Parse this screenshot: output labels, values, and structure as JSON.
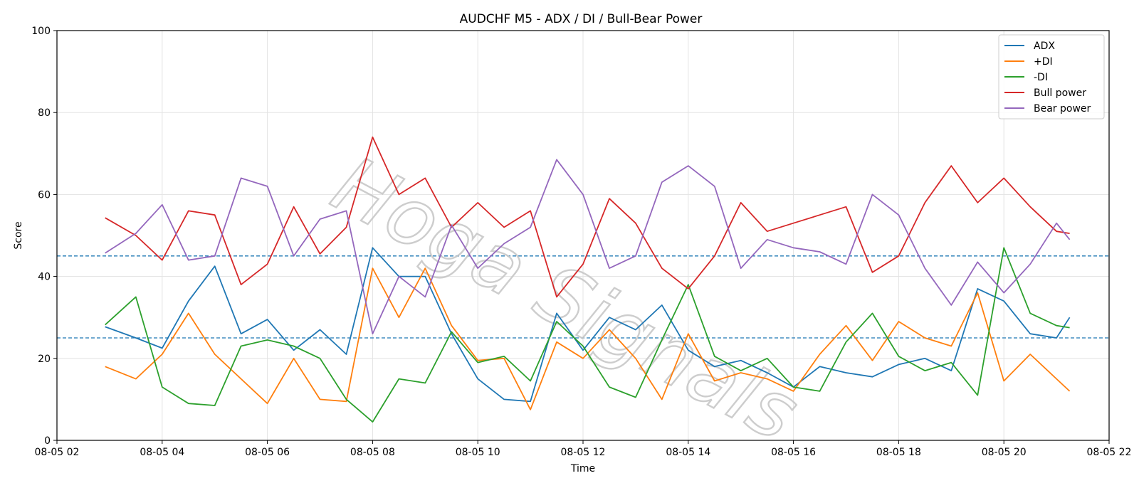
{
  "chart_data": {
    "type": "line",
    "title": "AUDCHF M5 - ADX / DI / Bull-Bear Power",
    "xlabel": "Time",
    "ylabel": "Score",
    "ylim": [
      0,
      100
    ],
    "xlim": [
      "2024-08-05 02:00",
      "2024-08-05 22:00"
    ],
    "x_tick_labels": [
      "08-05 02",
      "08-05 04",
      "08-05 06",
      "08-05 08",
      "08-05 10",
      "08-05 12",
      "08-05 14",
      "08-05 16",
      "08-05 18",
      "08-05 20",
      "08-05 22"
    ],
    "y_ticks": [
      0,
      20,
      40,
      60,
      80,
      100
    ],
    "grid": true,
    "legend_position": "top-right",
    "watermark": "Hoga Signals",
    "reference_lines": [
      {
        "y": 45,
        "style": "dashed",
        "color": "#1f77b4"
      },
      {
        "y": 25,
        "style": "dashed",
        "color": "#1f77b4"
      }
    ],
    "x": [
      "2024-08-05 02:55",
      "2024-08-05 03:30",
      "2024-08-05 04:00",
      "2024-08-05 04:30",
      "2024-08-05 05:00",
      "2024-08-05 05:30",
      "2024-08-05 06:00",
      "2024-08-05 06:30",
      "2024-08-05 07:00",
      "2024-08-05 07:30",
      "2024-08-05 08:00",
      "2024-08-05 08:30",
      "2024-08-05 09:00",
      "2024-08-05 09:30",
      "2024-08-05 10:00",
      "2024-08-05 10:30",
      "2024-08-05 11:00",
      "2024-08-05 11:30",
      "2024-08-05 12:00",
      "2024-08-05 12:30",
      "2024-08-05 13:00",
      "2024-08-05 13:30",
      "2024-08-05 14:00",
      "2024-08-05 14:30",
      "2024-08-05 15:00",
      "2024-08-05 15:30",
      "2024-08-05 16:00",
      "2024-08-05 16:30",
      "2024-08-05 17:00",
      "2024-08-05 17:30",
      "2024-08-05 18:00",
      "2024-08-05 18:30",
      "2024-08-05 19:00",
      "2024-08-05 19:30",
      "2024-08-05 20:00",
      "2024-08-05 20:30",
      "2024-08-05 21:00",
      "2024-08-05 21:15"
    ],
    "series": [
      {
        "name": "ADX",
        "color": "#1f77b4",
        "values": [
          27.7,
          25.0,
          22.5,
          34.0,
          42.5,
          26.0,
          29.5,
          22.0,
          27.0,
          21.0,
          47.0,
          40.0,
          40.0,
          26.0,
          15.0,
          10.0,
          9.5,
          31.0,
          22.0,
          30.0,
          27.0,
          33.0,
          22.0,
          18.0,
          19.5,
          16.5,
          13.0,
          18.0,
          16.5,
          15.5,
          18.5,
          20.0,
          17.0,
          37.0,
          34.0,
          26.0,
          25.0,
          30.0
        ]
      },
      {
        "name": "+DI",
        "color": "#ff7f0e",
        "values": [
          18.0,
          15.0,
          21.0,
          31.0,
          21.0,
          15.0,
          9.0,
          20.0,
          10.0,
          9.5,
          42.0,
          30.0,
          42.0,
          28.0,
          19.5,
          20.0,
          7.5,
          24.0,
          20.0,
          27.0,
          20.0,
          10.0,
          26.0,
          14.5,
          16.5,
          15.0,
          12.0,
          21.0,
          28.0,
          19.5,
          29.0,
          25.0,
          23.0,
          36.0,
          14.5,
          21.0,
          15.0,
          12.0
        ]
      },
      {
        "name": "-DI",
        "color": "#2ca02c",
        "values": [
          28.2,
          35.0,
          13.0,
          9.0,
          8.5,
          23.0,
          24.5,
          23.0,
          20.0,
          10.0,
          4.5,
          15.0,
          14.0,
          26.5,
          19.0,
          20.5,
          14.5,
          29.0,
          23.0,
          13.0,
          10.5,
          24.5,
          38.0,
          20.5,
          17.0,
          20.0,
          13.0,
          12.0,
          24.0,
          31.0,
          20.5,
          17.0,
          19.0,
          11.0,
          47.0,
          31.0,
          28.0,
          27.5
        ]
      },
      {
        "name": "Bull power",
        "color": "#d62728",
        "values": [
          54.3,
          50.0,
          44.0,
          56.0,
          55.0,
          38.0,
          43.0,
          57.0,
          45.5,
          52.0,
          74.0,
          60.0,
          64.0,
          52.0,
          58.0,
          52.0,
          56.0,
          35.0,
          43.0,
          59.0,
          53.0,
          42.0,
          37.0,
          45.0,
          58.0,
          51.0,
          53.0,
          55.0,
          57.0,
          41.0,
          45.0,
          58.0,
          67.0,
          58.0,
          64.0,
          57.0,
          51.0,
          50.5
        ]
      },
      {
        "name": "Bear power",
        "color": "#9467bd",
        "values": [
          45.7,
          50.5,
          57.5,
          44.0,
          45.0,
          64.0,
          62.0,
          45.0,
          54.0,
          56.0,
          26.0,
          40.0,
          35.0,
          52.5,
          42.0,
          48.0,
          52.0,
          68.5,
          60.0,
          42.0,
          45.0,
          63.0,
          67.0,
          62.0,
          42.0,
          49.0,
          47.0,
          46.0,
          43.0,
          60.0,
          55.0,
          42.0,
          33.0,
          43.5,
          36.0,
          43.0,
          53.0,
          49.0
        ]
      }
    ]
  }
}
